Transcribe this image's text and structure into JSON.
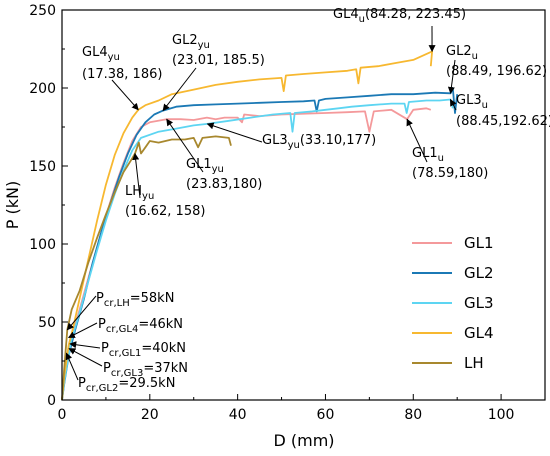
{
  "chart_data": {
    "type": "line",
    "xlabel": "D (mm)",
    "ylabel": "P (kN)",
    "xlim": [
      0,
      110
    ],
    "ylim": [
      0,
      250
    ],
    "xticks": [
      0,
      20,
      40,
      60,
      80,
      100
    ],
    "yticks": [
      0,
      50,
      100,
      150,
      200,
      250
    ],
    "grid": false,
    "legend_position": "bottom-right",
    "series": [
      {
        "name": "GL1",
        "color": "#F4999B",
        "points": [
          [
            0,
            0
          ],
          [
            0.5,
            12
          ],
          [
            1.5,
            30
          ],
          [
            2.2,
            40
          ],
          [
            3,
            48
          ],
          [
            4,
            58
          ],
          [
            6,
            78
          ],
          [
            8,
            98
          ],
          [
            10,
            118
          ],
          [
            12,
            136
          ],
          [
            14,
            152
          ],
          [
            16,
            166
          ],
          [
            18,
            175
          ],
          [
            20,
            178
          ],
          [
            23.83,
            180
          ],
          [
            27,
            180
          ],
          [
            30,
            179.5
          ],
          [
            33,
            181
          ],
          [
            35,
            180
          ],
          [
            37,
            181
          ],
          [
            40,
            181
          ],
          [
            41,
            178
          ],
          [
            41.5,
            183
          ],
          [
            45,
            182
          ],
          [
            50,
            183
          ],
          [
            55,
            183.5
          ],
          [
            60,
            184
          ],
          [
            65,
            184.5
          ],
          [
            69,
            185
          ],
          [
            70,
            172
          ],
          [
            71,
            185
          ],
          [
            75,
            186
          ],
          [
            78.59,
            180
          ],
          [
            80,
            186
          ],
          [
            83,
            187
          ],
          [
            84,
            186
          ]
        ]
      },
      {
        "name": "GL2",
        "color": "#1B79B5",
        "points": [
          [
            0,
            0
          ],
          [
            0.6,
            12
          ],
          [
            1.6,
            29.5
          ],
          [
            3,
            45
          ],
          [
            5,
            65
          ],
          [
            7,
            88
          ],
          [
            9,
            108
          ],
          [
            11,
            126
          ],
          [
            13,
            143
          ],
          [
            15,
            158
          ],
          [
            17,
            170
          ],
          [
            19,
            178
          ],
          [
            21,
            183
          ],
          [
            23.01,
            185.5
          ],
          [
            26,
            188
          ],
          [
            30,
            189
          ],
          [
            35,
            189.5
          ],
          [
            40,
            190
          ],
          [
            45,
            190.5
          ],
          [
            50,
            191
          ],
          [
            55,
            191.5
          ],
          [
            57.5,
            192
          ],
          [
            58,
            185
          ],
          [
            58.5,
            192
          ],
          [
            60,
            193
          ],
          [
            65,
            194
          ],
          [
            70,
            195
          ],
          [
            75,
            196
          ],
          [
            80,
            196
          ],
          [
            85,
            197
          ],
          [
            88.49,
            196.62
          ],
          [
            89,
            200
          ],
          [
            89.5,
            184
          ],
          [
            90,
            196
          ]
        ]
      },
      {
        "name": "GL3",
        "color": "#5DD5F2",
        "points": [
          [
            0,
            0
          ],
          [
            0.6,
            13
          ],
          [
            2,
            37
          ],
          [
            4,
            56
          ],
          [
            6,
            76
          ],
          [
            8,
            96
          ],
          [
            10,
            115
          ],
          [
            12,
            132
          ],
          [
            14,
            147
          ],
          [
            16,
            160
          ],
          [
            18,
            168
          ],
          [
            22,
            172
          ],
          [
            26,
            174
          ],
          [
            30,
            176
          ],
          [
            33.1,
            177
          ],
          [
            38,
            179
          ],
          [
            43,
            181
          ],
          [
            48,
            183
          ],
          [
            52,
            184
          ],
          [
            52.5,
            172
          ],
          [
            53,
            184
          ],
          [
            57,
            185
          ],
          [
            60,
            186
          ],
          [
            63,
            187
          ],
          [
            66,
            188
          ],
          [
            70,
            189
          ],
          [
            75,
            190
          ],
          [
            78,
            190
          ],
          [
            78.5,
            184
          ],
          [
            79,
            191
          ],
          [
            83,
            192
          ],
          [
            86,
            192
          ],
          [
            88.45,
            192.62
          ],
          [
            89,
            187
          ]
        ]
      },
      {
        "name": "GL4",
        "color": "#F7B830",
        "points": [
          [
            0,
            0
          ],
          [
            0.5,
            15
          ],
          [
            1.5,
            35
          ],
          [
            2.5,
            46
          ],
          [
            4,
            65
          ],
          [
            6,
            90
          ],
          [
            8,
            115
          ],
          [
            10,
            138
          ],
          [
            12,
            157
          ],
          [
            14,
            171
          ],
          [
            16,
            181
          ],
          [
            17.38,
            186
          ],
          [
            19,
            189
          ],
          [
            22,
            192
          ],
          [
            25,
            196
          ],
          [
            30,
            199
          ],
          [
            35,
            202
          ],
          [
            40,
            204
          ],
          [
            45,
            205.5
          ],
          [
            50,
            206.5
          ],
          [
            50.5,
            198
          ],
          [
            51,
            208
          ],
          [
            55,
            209
          ],
          [
            60,
            210
          ],
          [
            65,
            211
          ],
          [
            67,
            212
          ],
          [
            67.5,
            203
          ],
          [
            68,
            213
          ],
          [
            72,
            214
          ],
          [
            76,
            216
          ],
          [
            80,
            218
          ],
          [
            84.28,
            223.45
          ],
          [
            84,
            214
          ]
        ]
      },
      {
        "name": "LH",
        "color": "#A8882E",
        "points": [
          [
            0,
            0
          ],
          [
            0.5,
            20
          ],
          [
            1.2,
            45
          ],
          [
            2.2,
            58
          ],
          [
            4,
            70
          ],
          [
            6,
            88
          ],
          [
            8,
            104
          ],
          [
            10,
            119
          ],
          [
            12,
            133
          ],
          [
            14,
            146
          ],
          [
            16,
            155
          ],
          [
            16.62,
            158
          ],
          [
            17.5,
            165
          ],
          [
            18,
            158
          ],
          [
            19,
            162
          ],
          [
            20,
            166
          ],
          [
            22,
            165
          ],
          [
            25,
            167
          ],
          [
            28,
            167
          ],
          [
            30,
            168
          ],
          [
            31,
            162
          ],
          [
            32,
            168
          ],
          [
            35,
            169
          ],
          [
            38,
            168
          ],
          [
            38.5,
            163
          ]
        ]
      }
    ],
    "annotations": [
      {
        "text": "GL4",
        "sub": "yu",
        "value": "(17.38, 186)"
      },
      {
        "text": "GL2",
        "sub": "yu",
        "value": "(23.01, 185.5)"
      },
      {
        "text": "GL4",
        "sub": "u",
        "value": "(84.28, 223.45)"
      },
      {
        "text": "GL2",
        "sub": "u",
        "value": "(88.49, 196.62)"
      },
      {
        "text": "GL3",
        "sub": "u",
        "value": "(88.45,192.62)"
      },
      {
        "text": "GL3",
        "sub": "yu",
        "value": "(33.10,177)"
      },
      {
        "text": "GL1",
        "sub": "u",
        "value": "(78.59,180)"
      },
      {
        "text": "GL1",
        "sub": "yu",
        "value": "(23.83,180)"
      },
      {
        "text": "LH",
        "sub": "yu",
        "value": "(16.62, 158)"
      },
      {
        "text": "P",
        "sub": "cr,LH",
        "value": "=58kN"
      },
      {
        "text": "P",
        "sub": "cr,GL4",
        "value": "=46kN"
      },
      {
        "text": "P",
        "sub": "cr,GL1",
        "value": "=40kN"
      },
      {
        "text": "P",
        "sub": "cr,GL3",
        "value": "=37kN"
      },
      {
        "text": "P",
        "sub": "cr,GL2",
        "value": "=29.5kN"
      }
    ]
  }
}
